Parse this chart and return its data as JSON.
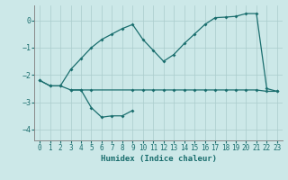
{
  "xlabel": "Humidex (Indice chaleur)",
  "background_color": "#cce8e8",
  "line_color": "#1a6e6e",
  "grid_color": "#aacccc",
  "xlim": [
    -0.5,
    23.5
  ],
  "ylim": [
    -4.4,
    0.55
  ],
  "yticks": [
    0,
    -1,
    -2,
    -3,
    -4
  ],
  "xticks": [
    0,
    1,
    2,
    3,
    4,
    5,
    6,
    7,
    8,
    9,
    10,
    11,
    12,
    13,
    14,
    15,
    16,
    17,
    18,
    19,
    20,
    21,
    22,
    23
  ],
  "series1_x": [
    0,
    1,
    2,
    3,
    4,
    5,
    6,
    7,
    8,
    9,
    10,
    11,
    12,
    13,
    14,
    15,
    16,
    17,
    18,
    19,
    20,
    21,
    22,
    23
  ],
  "series1_y": [
    -2.2,
    -2.4,
    -2.4,
    -1.8,
    -1.4,
    -1.0,
    -0.7,
    -0.5,
    -0.3,
    -0.15,
    -0.7,
    -1.1,
    -1.5,
    -1.25,
    -0.85,
    -0.5,
    -0.15,
    0.1,
    0.12,
    0.15,
    0.25,
    0.25,
    -2.5,
    -2.6
  ],
  "series2_x": [
    0,
    1,
    2,
    3,
    4,
    5,
    9,
    10,
    11,
    12,
    13,
    14,
    15,
    16,
    17,
    18,
    19,
    20,
    21,
    22,
    23
  ],
  "series2_y": [
    -2.2,
    -2.4,
    -2.4,
    -2.55,
    -2.55,
    -2.55,
    -2.55,
    -2.55,
    -2.55,
    -2.55,
    -2.55,
    -2.55,
    -2.55,
    -2.55,
    -2.55,
    -2.55,
    -2.55,
    -2.55,
    -2.55,
    -2.6,
    -2.6
  ],
  "series3_x": [
    3,
    4,
    5,
    6,
    7,
    8,
    9
  ],
  "series3_y": [
    -2.55,
    -2.55,
    -3.2,
    -3.55,
    -3.5,
    -3.5,
    -3.3
  ]
}
